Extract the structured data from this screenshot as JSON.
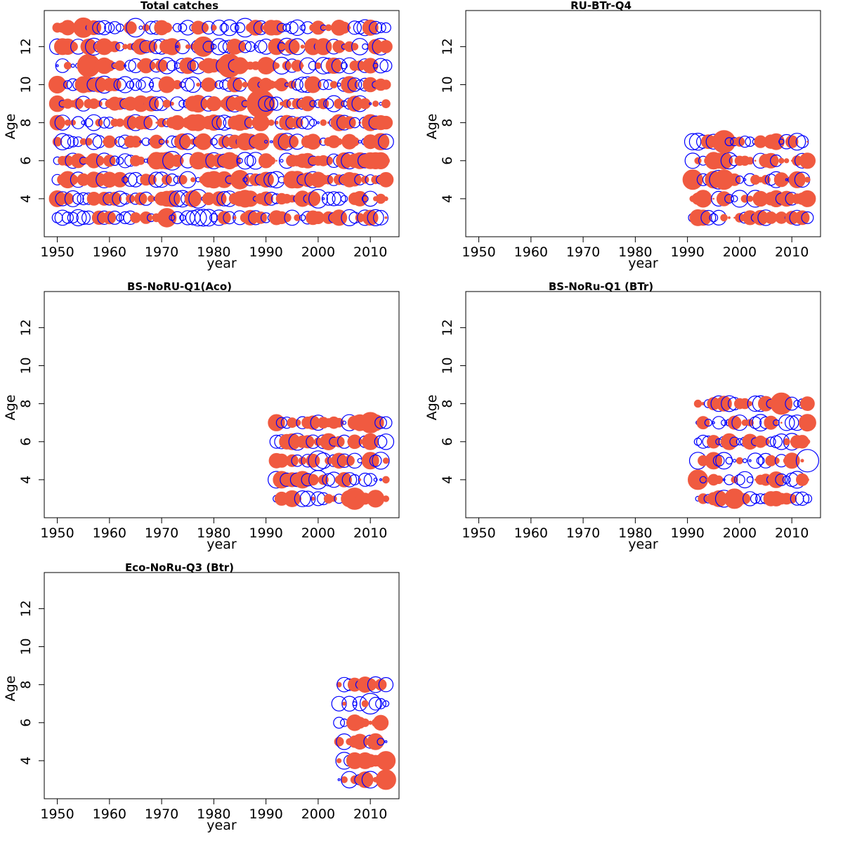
{
  "colors": {
    "positive": "#f05a40",
    "negative": "#0000ff"
  },
  "chart_data": [
    {
      "type": "scatter",
      "title": "Total catches",
      "xlabel": "year",
      "ylabel": "Age",
      "xlim": [
        1947.5,
        2015.5
      ],
      "ylim": [
        2.0,
        13.9
      ],
      "xticks": [
        1950,
        1960,
        1970,
        1980,
        1990,
        2000,
        2010
      ],
      "yticks": [
        4,
        6,
        8,
        10,
        12
      ],
      "years": [
        1950,
        2013
      ],
      "ages": [
        3,
        4,
        5,
        6,
        7,
        8,
        9,
        10,
        11,
        12,
        13
      ],
      "series": [],
      "highlights": [
        {
          "year": 1955,
          "age": 13,
          "r": 1.0
        },
        {
          "year": 1956,
          "age": 11,
          "r": 1.3
        },
        {
          "year": 1965,
          "age": 13,
          "r": -0.9
        },
        {
          "year": 1971,
          "age": 3,
          "r": 0.9
        },
        {
          "year": 1972,
          "age": 6,
          "r": -0.9
        },
        {
          "year": 1977,
          "age": 4,
          "r": -0.9
        },
        {
          "year": 1978,
          "age": 12,
          "r": 1.0
        },
        {
          "year": 1983,
          "age": 11,
          "r": 1.4
        },
        {
          "year": 1986,
          "age": 13,
          "r": -0.9
        },
        {
          "year": 1989,
          "age": 9,
          "r": 2.0
        },
        {
          "year": 1989,
          "age": 8,
          "r": 0.7
        },
        {
          "year": 1990,
          "age": 9,
          "r": -0.6
        },
        {
          "year": 1985,
          "age": 5,
          "r": 0.9
        },
        {
          "year": 2000,
          "age": 4,
          "r": -0.9
        }
      ]
    },
    {
      "type": "scatter",
      "title": "RU-BTr-Q4",
      "xlabel": "year",
      "ylabel": "Age",
      "xlim": [
        1947.5,
        2015.5
      ],
      "ylim": [
        2.0,
        13.9
      ],
      "xticks": [
        1950,
        1960,
        1970,
        1980,
        1990,
        2000,
        2010
      ],
      "yticks": [
        4,
        6,
        8,
        10,
        12
      ],
      "years": [
        1991,
        2013
      ],
      "ages": [
        3,
        4,
        5,
        6,
        7
      ],
      "series": [],
      "highlights": [
        {
          "year": 1997,
          "age": 7,
          "r": 1.3
        },
        {
          "year": 1991,
          "age": 5,
          "r": 1.0
        },
        {
          "year": 1996,
          "age": 5,
          "r": -0.9
        },
        {
          "year": 1997,
          "age": 5,
          "r": 1.0
        }
      ]
    },
    {
      "type": "scatter",
      "title": "BS-NoRU-Q1(Aco)",
      "xlabel": "year",
      "ylabel": "Age",
      "xlim": [
        1947.5,
        2015.5
      ],
      "ylim": [
        2.0,
        13.9
      ],
      "xticks": [
        1950,
        1960,
        1970,
        1980,
        1990,
        2000,
        2010
      ],
      "yticks": [
        4,
        6,
        8,
        10,
        12
      ],
      "years": [
        1992,
        2013
      ],
      "ages": [
        3,
        4,
        5,
        6,
        7
      ],
      "series": [],
      "highlights": [
        {
          "year": 2000,
          "age": 5,
          "r": -1.0
        },
        {
          "year": 2000,
          "age": 4,
          "r": -0.9
        },
        {
          "year": 2007,
          "age": 3,
          "r": 1.2
        },
        {
          "year": 2010,
          "age": 7,
          "r": 1.1
        }
      ]
    },
    {
      "type": "scatter",
      "title": "BS-NoRu-Q1 (BTr)",
      "xlabel": "year",
      "ylabel": "Age",
      "xlim": [
        1947.5,
        2015.5
      ],
      "ylim": [
        2.0,
        13.9
      ],
      "xticks": [
        1950,
        1960,
        1970,
        1980,
        1990,
        2000,
        2010
      ],
      "yticks": [
        4,
        6,
        8,
        10,
        12
      ],
      "years": [
        1992,
        2013
      ],
      "ages": [
        3,
        4,
        5,
        6,
        7,
        8
      ],
      "series": [],
      "highlights": [
        {
          "year": 2013,
          "age": 5,
          "r": -1.3
        },
        {
          "year": 2008,
          "age": 8,
          "r": 1.2
        },
        {
          "year": 1992,
          "age": 4,
          "r": 1.0
        },
        {
          "year": 1999,
          "age": 3,
          "r": 1.0
        }
      ]
    },
    {
      "type": "scatter",
      "title": "Eco-NoRu-Q3 (Btr)",
      "xlabel": "year",
      "ylabel": "Age",
      "xlim": [
        1947.5,
        2015.5
      ],
      "ylim": [
        2.0,
        13.9
      ],
      "xticks": [
        1950,
        1960,
        1970,
        1980,
        1990,
        2000,
        2010
      ],
      "yticks": [
        4,
        6,
        8,
        10,
        12
      ],
      "years": [
        2004,
        2013
      ],
      "ages": [
        3,
        4,
        5,
        6,
        7,
        8
      ],
      "series": [],
      "highlights": [
        {
          "year": 2010,
          "age": 7,
          "r": -1.1
        },
        {
          "year": 2013,
          "age": 3,
          "r": 1.0
        },
        {
          "year": 2013,
          "age": 4,
          "r": 0.9
        }
      ]
    }
  ]
}
